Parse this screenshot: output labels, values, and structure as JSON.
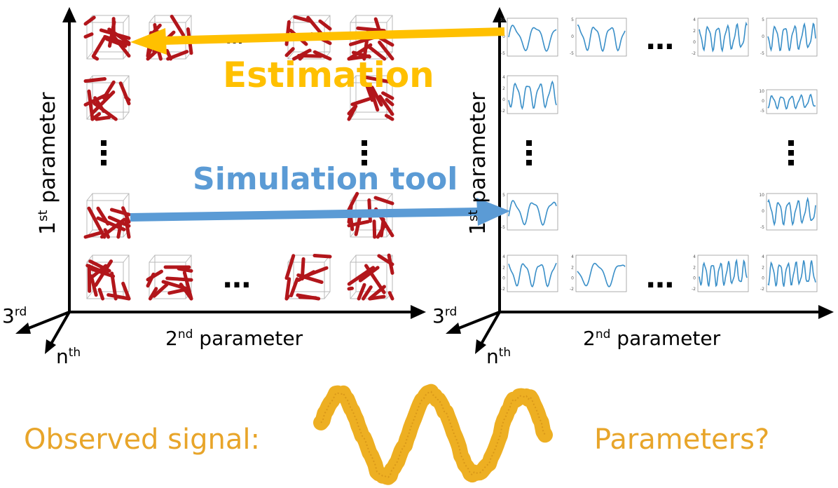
{
  "left_panel": {
    "y_axis_label": "1",
    "y_axis_label_sup": "st",
    "y_axis_label_rest": " parameter",
    "x_axis_label": "2",
    "x_axis_label_sup": "nd",
    "x_axis_label_rest": " parameter",
    "z_axis_label": "3",
    "z_axis_label_sup": "rd",
    "n_axis_label": "n",
    "n_axis_label_sup": "th",
    "ellipsis": "…",
    "vertical_ellipsis": "⋮",
    "small_ellipsis": "..."
  },
  "right_panel": {
    "y_axis_label": "1",
    "y_axis_label_sup": "st",
    "y_axis_label_rest": " parameter",
    "x_axis_label": "2",
    "x_axis_label_sup": "nd",
    "x_axis_label_rest": " parameter",
    "z_axis_label": "3",
    "z_axis_label_sup": "rd",
    "n_axis_label": "n",
    "n_axis_label_sup": "th",
    "ellipsis": "…",
    "vertical_ellipsis": "⋮"
  },
  "arrows": {
    "estimation_label": "Estimation",
    "simulation_label": "Simulation tool"
  },
  "bottom": {
    "observed_label": "Observed signal:",
    "parameters_label": "Parameters?"
  },
  "plot_ticks": {
    "set_a": [
      "10",
      "0",
      "-5"
    ],
    "set_b": [
      "5",
      "0",
      "-5"
    ],
    "set_c": [
      "4",
      "2",
      "0",
      "-2"
    ],
    "set_d": [
      "5",
      "0",
      "-5"
    ]
  },
  "colors": {
    "estimation": "#FFC000",
    "simulation": "#5B9BD5",
    "signal": "#EDAF22",
    "fiber": "#B2161B",
    "curve": "#3A8FC8",
    "bottom_text": "#E8A52A"
  },
  "icons": [
    "fiber-structure-icon",
    "signal-plot-icon"
  ]
}
